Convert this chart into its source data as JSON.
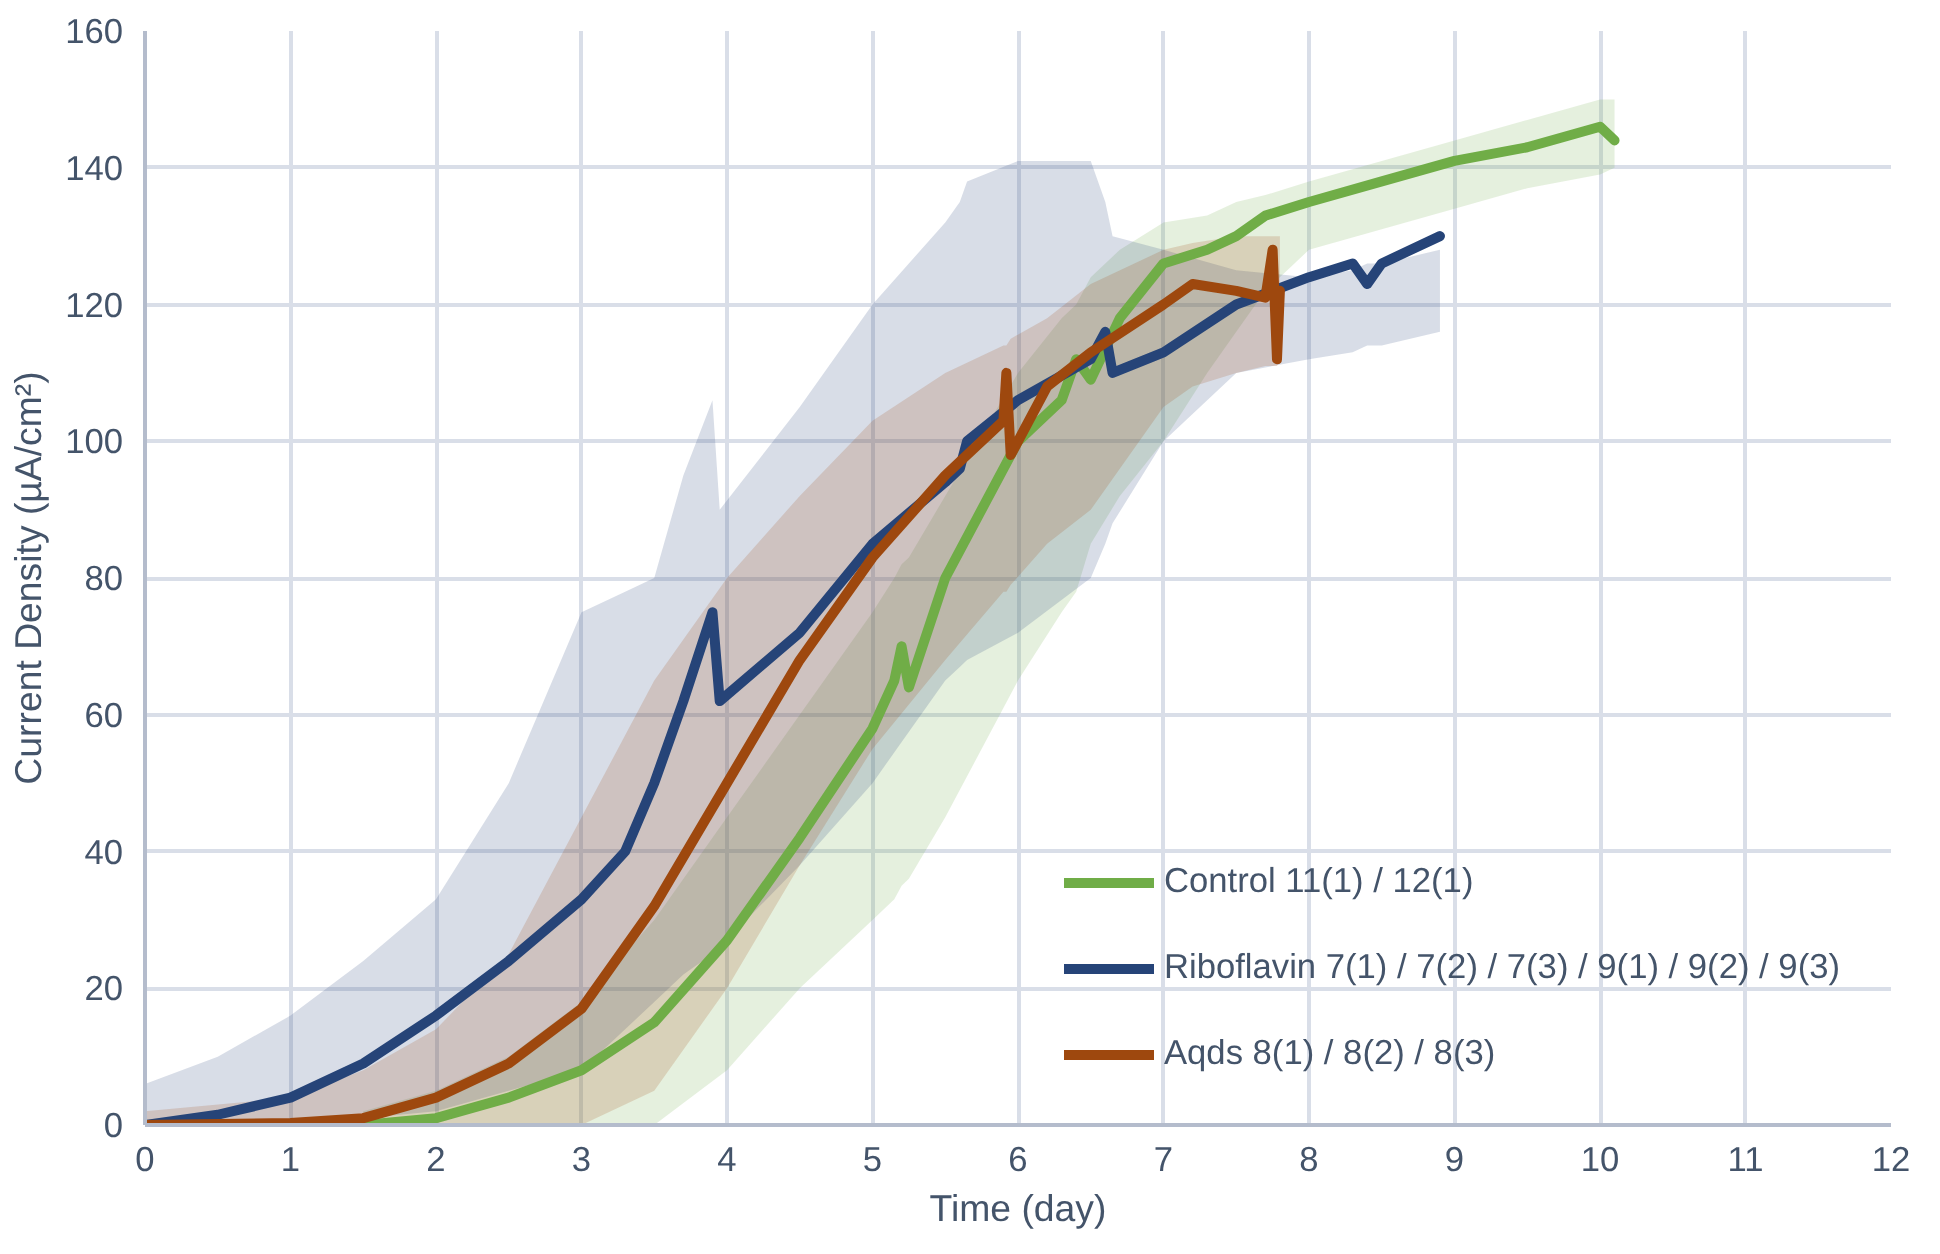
{
  "chart_data": {
    "type": "line",
    "xlabel": "Time (day)",
    "ylabel": "Current Density (µA/cm²)",
    "xlim": [
      0,
      12
    ],
    "ylim": [
      0,
      160
    ],
    "xticks": [
      0,
      1,
      2,
      3,
      4,
      5,
      6,
      7,
      8,
      9,
      10,
      11,
      12
    ],
    "yticks": [
      0,
      20,
      40,
      60,
      80,
      100,
      120,
      140,
      160
    ],
    "grid": true,
    "legend": "bottom right",
    "marker": "none",
    "line_style": "solid",
    "series": [
      {
        "name": "Control 11(1) / 12(1)",
        "color": "#70ad47",
        "x": [
          1.5,
          2,
          2.5,
          3,
          3.5,
          4,
          4.5,
          5,
          5.15,
          5.2,
          5.25,
          5.5,
          6,
          6.3,
          6.4,
          6.5,
          6.7,
          7,
          7.3,
          7.5,
          7.7,
          8,
          8.5,
          9,
          9.5,
          10,
          10.1
        ],
        "values": [
          0,
          1,
          4,
          8,
          15,
          27,
          42,
          58,
          65,
          70,
          64,
          80,
          100,
          106,
          112,
          109,
          118,
          126,
          128,
          130,
          133,
          135,
          138,
          141,
          143,
          146,
          144
        ],
        "lower": [
          0,
          0,
          0,
          0,
          0,
          8,
          20,
          30,
          33,
          35,
          36,
          45,
          65,
          75,
          78,
          85,
          92,
          100,
          110,
          116,
          122,
          128,
          131,
          134,
          137,
          139,
          140
        ],
        "upper": [
          2,
          5,
          10,
          18,
          30,
          45,
          60,
          75,
          80,
          82,
          83,
          92,
          110,
          118,
          120,
          124,
          128,
          132,
          133,
          135,
          136,
          138,
          141,
          144,
          147,
          150,
          150
        ]
      },
      {
        "name": "Riboflavin 7(1) / 7(2) / 7(3) / 9(1) / 9(2) / 9(3)",
        "color": "#264478",
        "x": [
          0,
          0.5,
          1,
          1.5,
          2,
          2.5,
          3,
          3.3,
          3.5,
          3.7,
          3.9,
          3.95,
          4.5,
          5,
          5.5,
          5.6,
          5.65,
          6,
          6.5,
          6.6,
          6.65,
          7,
          7.5,
          8,
          8.3,
          8.4,
          8.5,
          8.9
        ],
        "values": [
          0,
          1.5,
          4,
          9,
          16,
          24,
          33,
          40,
          50,
          62,
          75,
          62,
          72,
          85,
          94,
          96,
          100,
          106,
          112,
          116,
          110,
          113,
          120,
          124,
          126,
          123,
          126,
          130
        ],
        "lower": [
          0,
          0,
          0,
          1,
          2,
          5,
          8,
          14,
          18,
          22,
          25,
          26,
          38,
          50,
          65,
          67,
          68,
          72,
          80,
          85,
          88,
          100,
          110,
          112,
          113,
          114,
          114,
          116
        ],
        "upper": [
          6,
          10,
          16,
          24,
          33,
          50,
          75,
          78,
          80,
          95,
          106,
          90,
          105,
          120,
          132,
          135,
          138,
          141,
          141,
          135,
          130,
          128,
          125,
          124,
          125,
          126,
          126,
          128
        ]
      },
      {
        "name": "Aqds 8(1) / 8(2) / 8(3)",
        "color": "#9e480e",
        "x": [
          0,
          1,
          1.5,
          2,
          2.5,
          3,
          3.5,
          4,
          4.5,
          5,
          5.5,
          5.9,
          5.92,
          5.95,
          6.2,
          6.5,
          7,
          7.2,
          7.5,
          7.7,
          7.75,
          7.78,
          7.8
        ],
        "values": [
          0,
          0.3,
          1,
          4,
          9,
          17,
          32,
          50,
          68,
          83,
          95,
          103,
          110,
          98,
          108,
          113,
          120,
          123,
          122,
          121,
          128,
          112,
          122
        ],
        "lower": [
          0,
          0,
          0,
          0,
          0,
          0,
          5,
          20,
          38,
          55,
          68,
          78,
          78,
          79,
          85,
          90,
          105,
          108,
          110,
          111,
          111,
          111,
          112
        ],
        "upper": [
          2,
          4,
          8,
          14,
          25,
          45,
          65,
          80,
          92,
          103,
          110,
          114,
          114,
          115,
          118,
          123,
          128,
          129,
          130,
          130,
          130,
          130,
          130
        ]
      }
    ]
  }
}
